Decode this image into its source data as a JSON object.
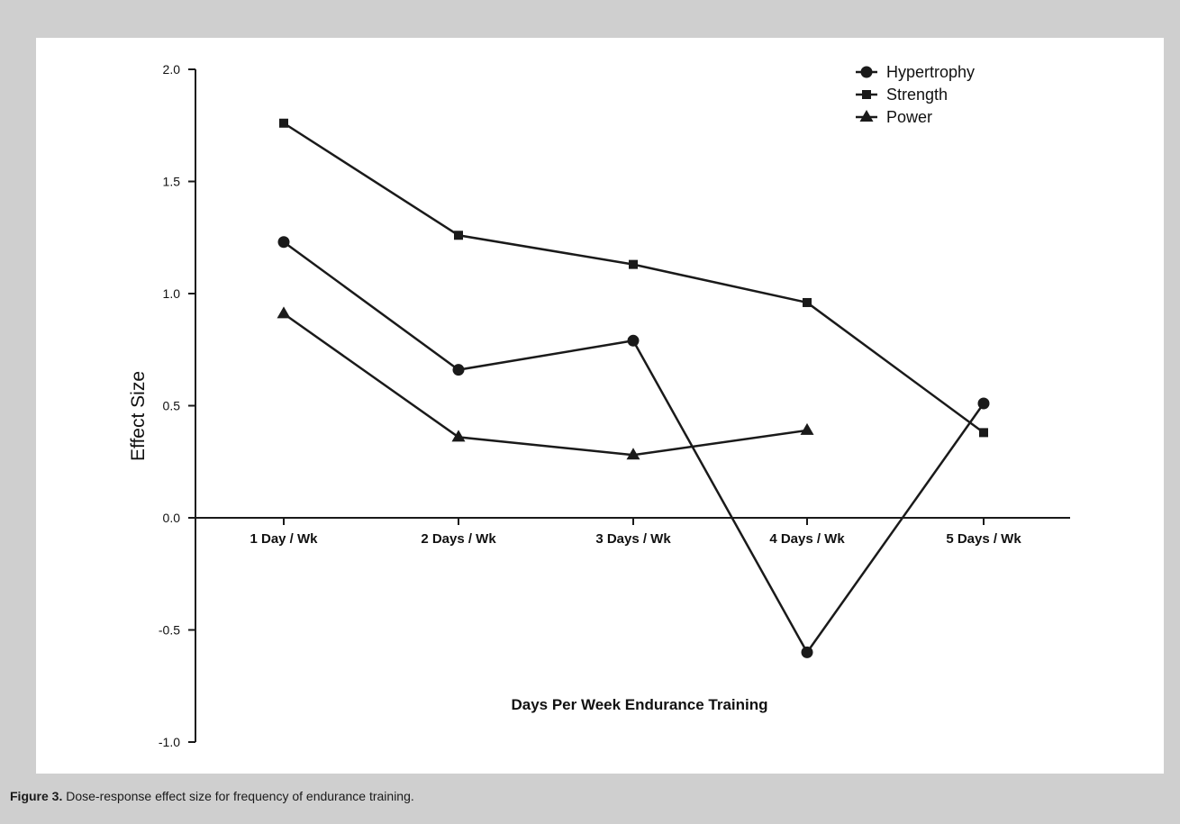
{
  "caption": {
    "label": "Figure 3.",
    "text": " Dose-response effect size for frequency of endurance training."
  },
  "chart_data": {
    "type": "line",
    "categories": [
      "1 Day / Wk",
      "2 Days / Wk",
      "3 Days / Wk",
      "4 Days / Wk",
      "5 Days / Wk"
    ],
    "xlabel": "Days Per Week Endurance Training",
    "ylabel": "Effect Size",
    "ylim": [
      -1.0,
      2.0
    ],
    "yticks": [
      -1.0,
      -0.5,
      0.0,
      0.5,
      1.0,
      1.5,
      2.0
    ],
    "ytick_labels": [
      "-1.0",
      "-0.5",
      "0.0",
      "0.5",
      "1.0",
      "1.5",
      "2.0"
    ],
    "legend_position": "top-right",
    "grid": false,
    "series": [
      {
        "name": "Hypertrophy",
        "marker": "circle",
        "values": [
          1.23,
          0.66,
          0.79,
          -0.6,
          0.51
        ]
      },
      {
        "name": "Strength",
        "marker": "square",
        "values": [
          1.76,
          1.26,
          1.13,
          0.96,
          0.38
        ]
      },
      {
        "name": "Power",
        "marker": "triangle",
        "values": [
          0.91,
          0.36,
          0.28,
          0.39,
          null
        ]
      }
    ],
    "colors": {
      "line": "#1a1a1a",
      "background": "#ffffff",
      "frame": "#cfcfcf"
    }
  }
}
